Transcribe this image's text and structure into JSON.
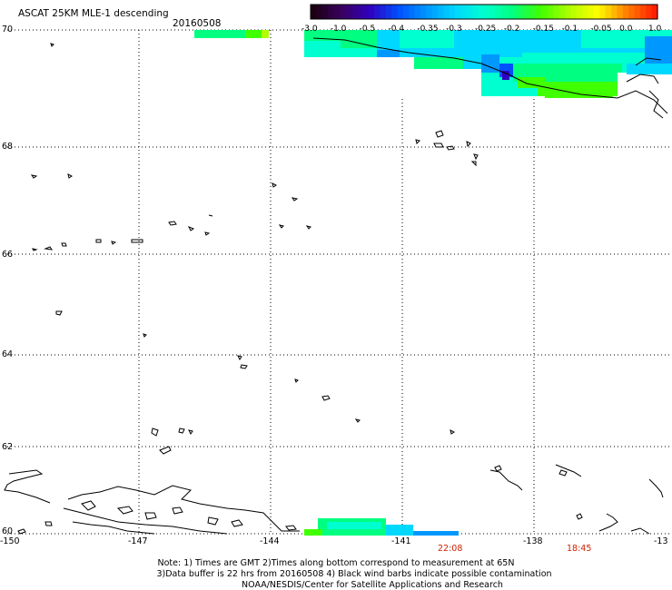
{
  "header": {
    "title": "ASCAT 25KM MLE-1 descending",
    "date": "20160508"
  },
  "colorbar": {
    "ticks": [
      "-3.0",
      "-1.0",
      "-0.5",
      "-0.4",
      "-0.35",
      "-0.3",
      "-0.25",
      "-0.2",
      "-0.15",
      "-0.1",
      "-0.05",
      "0.0",
      "1.0"
    ],
    "colors": [
      "#1a0010",
      "#3a0060",
      "#3000c0",
      "#0050ff",
      "#0098ff",
      "#00d8ff",
      "#00ffd0",
      "#00ff80",
      "#40ff00",
      "#b0ff00",
      "#ffff00",
      "#ff8000",
      "#ff2000"
    ]
  },
  "axes": {
    "lat_labels": [
      "70",
      "68",
      "66",
      "64",
      "62",
      "60"
    ],
    "lon_labels": [
      "-150",
      "-147",
      "-144",
      "-141",
      "-138",
      "-13"
    ]
  },
  "times": [
    "22:08",
    "18:45"
  ],
  "notes": [
    "Note: 1) Times are GMT 2)Times along bottom correspond to measurement at 65N",
    "3)Data buffer is 22 hrs from 20160508 4) Black wind barbs indicate possible contamination",
    "NOAA/NESDIS/Center for Satellite Applications and Research"
  ]
}
